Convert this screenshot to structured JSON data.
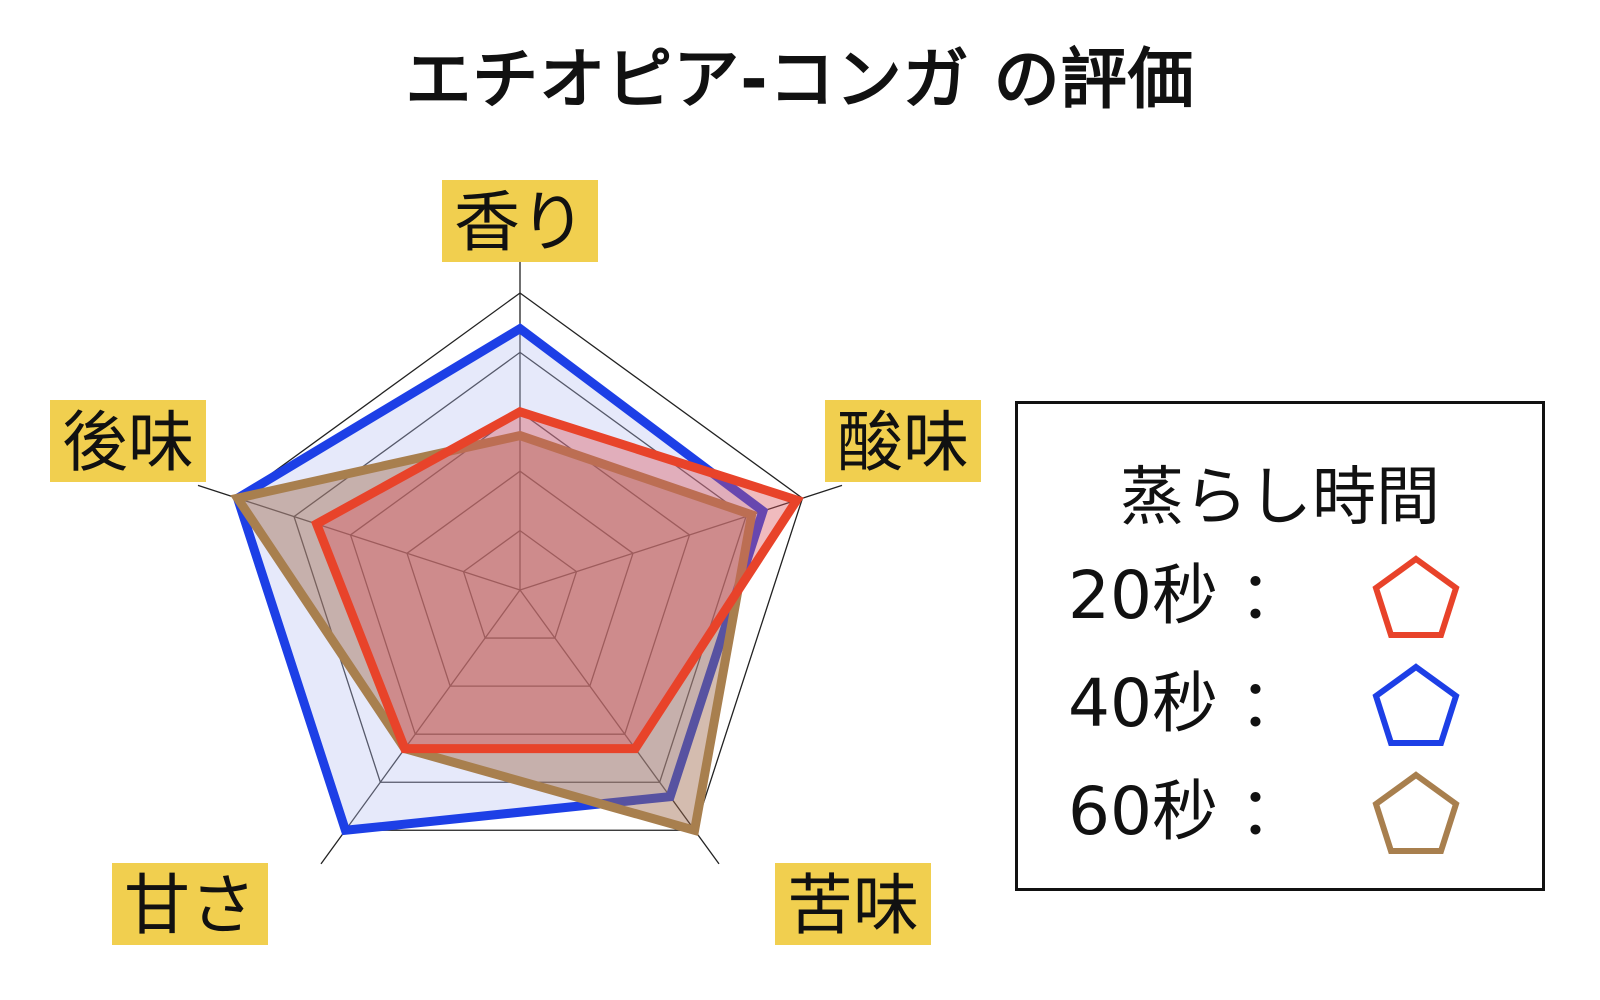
{
  "chart_data": {
    "type": "radar",
    "title": "エチオピア-コンガ の評価",
    "axes": [
      "香り",
      "酸味",
      "苦味",
      "甘さ",
      "後味"
    ],
    "axis_label_background": "#f1cf4f",
    "scale_max": 5,
    "grid_levels": 5,
    "series": [
      {
        "name": "20秒",
        "values": [
          3.0,
          4.9,
          3.3,
          3.3,
          3.6
        ],
        "color": "#e8432a",
        "fill": "#d9545c",
        "fill_opacity": 0.4
      },
      {
        "name": "40秒",
        "values": [
          4.4,
          4.3,
          4.3,
          5.0,
          5.0
        ],
        "color": "#1d3fe6",
        "fill": "#b8c0f2",
        "fill_opacity": 0.35
      },
      {
        "name": "60秒",
        "values": [
          2.6,
          4.1,
          5.0,
          3.3,
          5.0
        ],
        "color": "#a87f4e",
        "fill": "#a06a4e",
        "fill_opacity": 0.45
      }
    ],
    "legend": {
      "title": "蒸らし時間",
      "placement": "right",
      "separator": "："
    }
  }
}
